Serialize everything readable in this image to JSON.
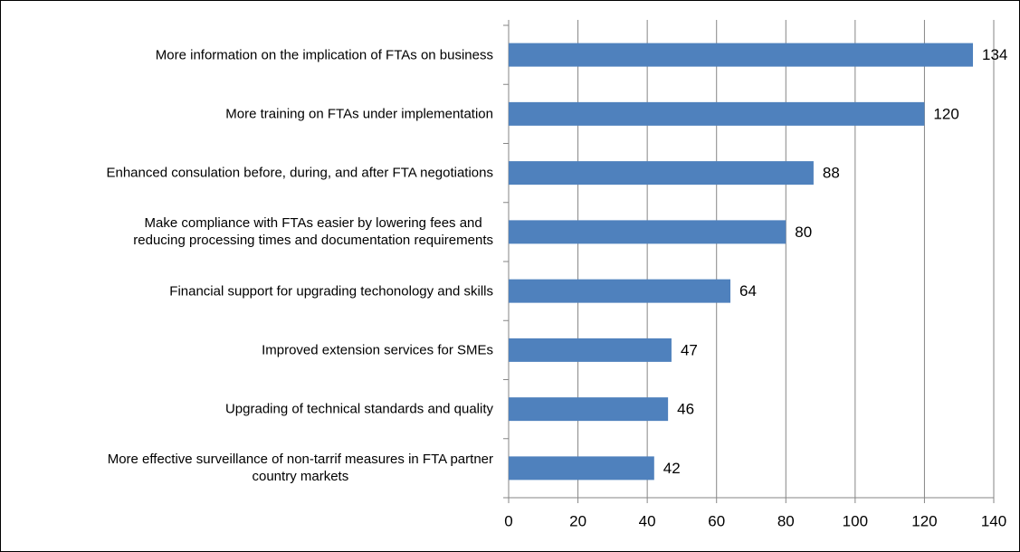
{
  "chart_data": {
    "type": "bar",
    "orientation": "horizontal",
    "categories": [
      "More information on the implication of FTAs on business",
      "More training on FTAs under implementation",
      "Enhanced consulation before, during, and after FTA negotiations",
      "Make compliance with FTAs easier by lowering fees and\nreducing processing times and documentation requirements",
      "Financial support for upgrading techonology and skills",
      "Improved extension services for SMEs",
      "Upgrading of technical standards and quality",
      "More effective surveillance of non-tarrif measures in FTA partner\ncountry markets"
    ],
    "values": [
      134,
      120,
      88,
      80,
      64,
      47,
      46,
      42
    ],
    "color": "#4f81bd",
    "xlim": [
      0,
      140
    ],
    "xticks": [
      0,
      20,
      40,
      60,
      80,
      100,
      120,
      140
    ],
    "grid": true
  }
}
